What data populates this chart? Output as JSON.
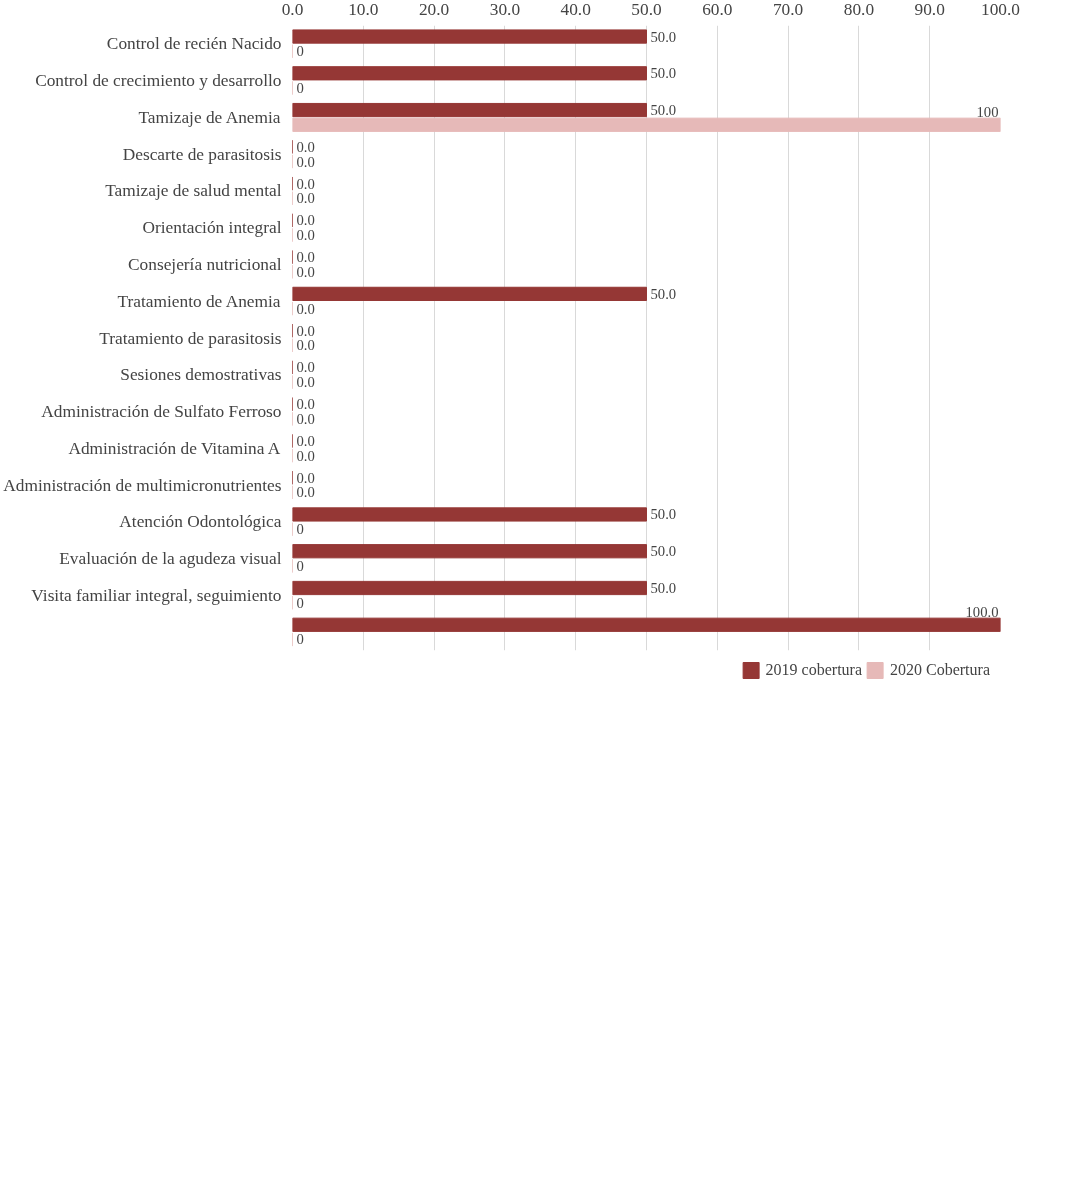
{
  "chart_data": {
    "type": "bar",
    "orientation": "horizontal",
    "categories": [
      "Control de recién Nacido",
      "Control de crecimiento y desarrollo",
      "Tamizaje de Anemia",
      "Descarte de parasitosis",
      "Tamizaje de salud mental",
      "Orientación integral",
      "Consejería nutricional",
      "Tratamiento de Anemia",
      "Tratamiento de parasitosis",
      "Sesiones demostrativas",
      "Administración de Sulfato Ferroso",
      "Administración de Vitamina A",
      "Administración de multimicronutrientes",
      "Atención Odontológica",
      "Evaluación de la agudeza visual",
      "Visita familiar integral, seguimiento",
      null
    ],
    "series": [
      {
        "name": "2019 cobertura",
        "color": "#953735",
        "values": [
          50,
          50,
          50,
          0,
          0,
          0,
          0,
          50,
          0,
          0,
          0,
          0,
          0,
          50,
          50,
          50,
          100
        ],
        "value_labels": [
          "50.0",
          "50.0",
          "50.0",
          "0.0",
          "0.0",
          "0.0",
          "0.0",
          "50.0",
          "0.0",
          "0.0",
          "0.0",
          "0.0",
          "0.0",
          "50.0",
          "50.0",
          "50.0",
          "100.0"
        ]
      },
      {
        "name": "2020 Cobertura",
        "color": "#e6b9b8",
        "values": [
          0,
          0,
          100,
          0,
          0,
          0,
          0,
          0,
          0,
          0,
          0,
          0,
          0,
          0,
          0,
          0,
          0
        ],
        "value_labels": [
          "0",
          "0",
          "100",
          "0.0",
          "0.0",
          "0.0",
          "0.0",
          "0.0",
          "0.0",
          "0.0",
          "0.0",
          "0.0",
          "0.0",
          "0",
          "0",
          "0",
          "0"
        ]
      }
    ],
    "xlim": [
      0,
      100
    ],
    "xticks": [
      {
        "value": 0,
        "label": "0.0"
      },
      {
        "value": 10,
        "label": "10.0"
      },
      {
        "value": 20,
        "label": "20.0"
      },
      {
        "value": 30,
        "label": "30.0"
      },
      {
        "value": 40,
        "label": "40.0"
      },
      {
        "value": 50,
        "label": "50.0"
      },
      {
        "value": 60,
        "label": "60.0"
      },
      {
        "value": 70,
        "label": "70.0"
      },
      {
        "value": 80,
        "label": "80.0"
      },
      {
        "value": 90,
        "label": "90.0"
      },
      {
        "value": 100,
        "label": "100.0"
      }
    ],
    "grid": "x",
    "legend": "bottom"
  }
}
